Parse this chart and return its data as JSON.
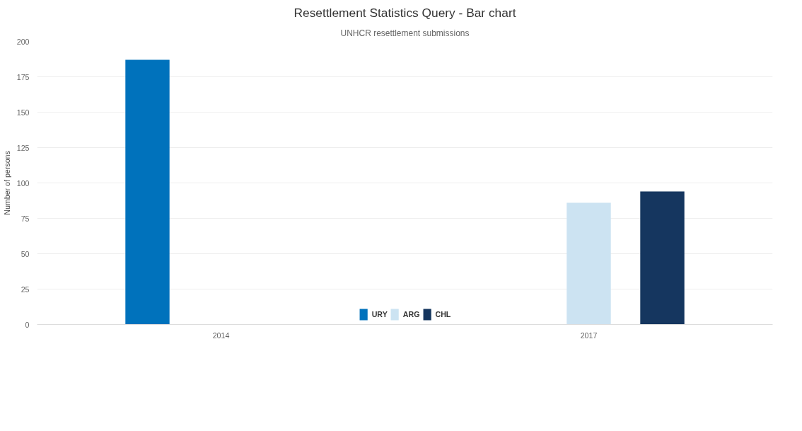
{
  "chart_data": {
    "type": "bar",
    "title": "Resettlement Statistics Query - Bar chart",
    "subtitle": "UNHCR resettlement submissions",
    "ylabel": "Number of persons",
    "categories": [
      "2014",
      "2017"
    ],
    "series": [
      {
        "name": "URY",
        "color": "#0072bc",
        "values": [
          187,
          null
        ]
      },
      {
        "name": "ARG",
        "color": "#cce3f2",
        "values": [
          null,
          86
        ]
      },
      {
        "name": "CHL",
        "color": "#15365f",
        "values": [
          null,
          94
        ]
      }
    ],
    "ylim": [
      0,
      200
    ],
    "yticks": [
      0,
      25,
      50,
      75,
      100,
      125,
      150,
      175,
      200
    ],
    "grid": "y",
    "legend": "bottom"
  }
}
